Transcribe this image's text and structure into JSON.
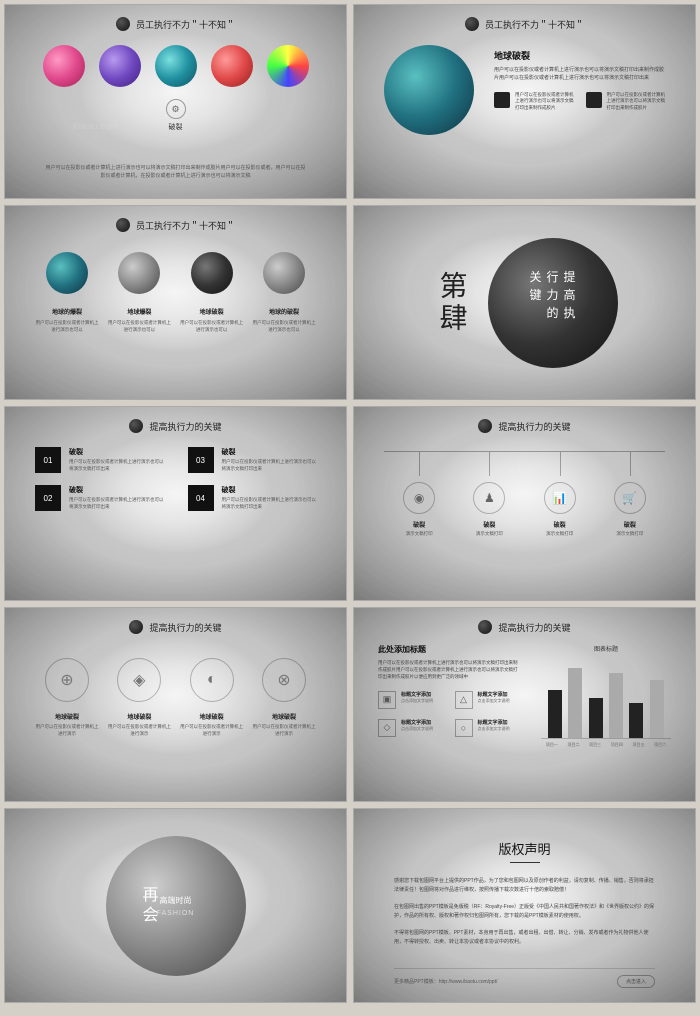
{
  "titles": {
    "t1": "员工执行不力＂十不知＂",
    "t2": "提高执行力的关键"
  },
  "s1": {
    "label": "破裂",
    "desc": "用户可以在投影仪或者计算机上进行演示也可以将演示文稿打印出来制作成胶片用户可以在投影仪或者，用户可以在投影仪或者计算机，在投影仪或者计算机上进行演示也可以将演示文稿"
  },
  "s2": {
    "title": "地球破裂",
    "desc": "用户可以在投影仪或者计算机上进行演示也可以将演示文稿打印出来制作成胶片用户可以在投影仪或者计算机上进行演示也可以将演示文稿打印出来",
    "col": "用户可以在投影仪或者计算机上进行演示也可以将演示文稿打印出来制作成胶片"
  },
  "s3": {
    "items": [
      {
        "t": "地球的爆裂",
        "d": "用户可以在投影仪或者计算机上进行演示也可以"
      },
      {
        "t": "地球爆裂",
        "d": "用户可以在投影仪或者计算机上进行演示也可以"
      },
      {
        "t": "地球破裂",
        "d": "用户可以在投影仪或者计算机上进行演示也可以"
      },
      {
        "t": "地球的破裂",
        "d": "用户可以在投影仪或者计算机上进行演示也可以"
      }
    ]
  },
  "s4": {
    "num": "第肆",
    "title": "提高执行力的关键"
  },
  "s5": {
    "items": [
      {
        "n": "01",
        "t": "破裂",
        "d": "用户可以在投影仪或者计算机上进行演示也可以将演示文稿打印出来"
      },
      {
        "n": "03",
        "t": "破裂",
        "d": "用户可以在投影仪或者计算机上进行演示也可以将演示文稿打印出来"
      },
      {
        "n": "02",
        "t": "破裂",
        "d": "用户可以在投影仪或者计算机上进行演示也可以将演示文稿打印出来"
      },
      {
        "n": "04",
        "t": "破裂",
        "d": "用户可以在投影仪或者计算机上进行演示也可以将演示文稿打印出来"
      }
    ]
  },
  "s6": {
    "items": [
      {
        "i": "◉",
        "t": "破裂",
        "d": "演示文稿打印"
      },
      {
        "i": "♟",
        "t": "破裂",
        "d": "演示文稿打印"
      },
      {
        "i": "📊",
        "t": "破裂",
        "d": "演示文稿打印"
      },
      {
        "i": "🛒",
        "t": "破裂",
        "d": "演示文稿打印"
      }
    ]
  },
  "s7": {
    "items": [
      {
        "i": "⊕",
        "t": "地球破裂",
        "d": "用户可以在投影仪或者计算机上进行演示"
      },
      {
        "i": "◈",
        "t": "地球破裂",
        "d": "用户可以在投影仪或者计算机上进行演示"
      },
      {
        "i": "◐",
        "t": "地球破裂",
        "d": "用户可以在投影仪或者计算机上进行演示"
      },
      {
        "i": "⊗",
        "t": "地球破裂",
        "d": "用户可以在投影仪或者计算机上进行演示"
      }
    ]
  },
  "s8": {
    "title": "此处添加标题",
    "desc": "用户可以在投影仪或者计算机上进行演示也可以将演示文稿打印出来制作成胶片用户可以在投影仪或者计算机上进行演示也可以将演示文稿打印出来制作成胶片以便应用到更广泛的领域中",
    "items": [
      {
        "i": "▣",
        "t": "标题文字添加",
        "d": "点击添加文字说明"
      },
      {
        "i": "△",
        "t": "标题文字添加",
        "d": "点击添加文字说明"
      },
      {
        "i": "◇",
        "t": "标题文字添加",
        "d": "点击添加文字说明"
      },
      {
        "i": "○",
        "t": "标题文字添加",
        "d": "点击添加文字说明"
      }
    ],
    "chartTitle": "图表标题",
    "bars": [
      48,
      70,
      40,
      65,
      35,
      58
    ],
    "barColors": [
      "#222",
      "#aaa",
      "#222",
      "#aaa",
      "#222",
      "#aaa"
    ],
    "axis": [
      "项目一",
      "项目二",
      "项目三",
      "项目四",
      "项目五",
      "项目六"
    ]
  },
  "s9": {
    "t1": "再会",
    "t2": "高端时尚",
    "t3": "FASHION"
  },
  "s10": {
    "title": "版权声明",
    "p1": "感谢您下载包图网平台上提供的PPT作品，为了您和包图网以及原创作者的利益，请勿复制、传播、销售，否则将承担法律责任！包图网将对作品进行维权，按照传播下载次数进行十倍的索取赔偿！",
    "p2": "在包图网出售的PPT模板是免版税（RF：Royalty-Free）正版受《中国人民共和国著作权法》和《世界版权公约》的保护，作品的所有权、版权和著作权归包图网所有，您下载的是PPT模板素材的使用权。",
    "p3": "不得将包图网的PPT模板、PPT素材，本身用于再出售，或者出租、出借、转让、分销、发布或者作为礼物供他人使用，不得转授权、出卖、转让本协议或者本协议中的权利。",
    "link": "更多精品PPT模板：http://www.ibaotu.com/ppt/",
    "btn": "点击进入"
  }
}
